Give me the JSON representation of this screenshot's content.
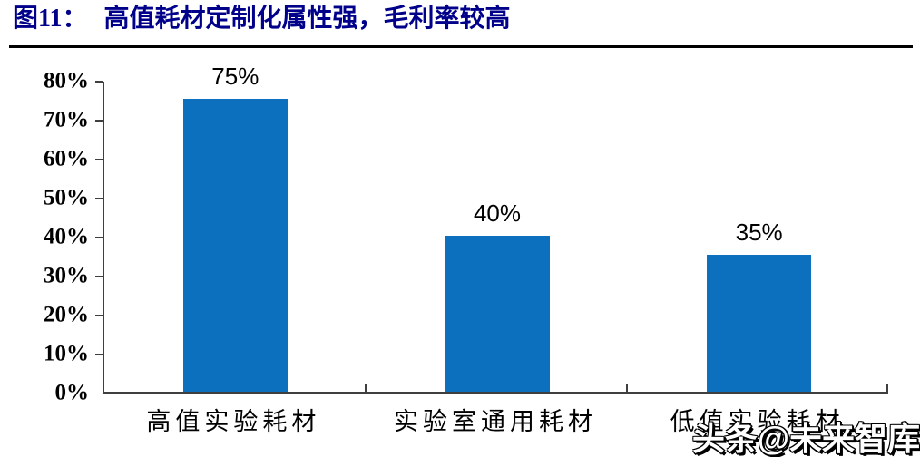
{
  "header": {
    "figure_no": "图11：",
    "title": "高值耗材定制化属性强，毛利率较高"
  },
  "chart_data": {
    "type": "bar",
    "title": "高值耗材定制化属性强，毛利率较高",
    "categories": [
      "高值实验耗材",
      "实验室通用耗材",
      "低值实验耗材"
    ],
    "values": [
      75,
      40,
      35
    ],
    "data_labels": [
      "75%",
      "40%",
      "35%"
    ],
    "y_tick_labels": [
      "80%",
      "70%",
      "60%",
      "50%",
      "40%",
      "30%",
      "20%",
      "10%",
      "0%"
    ],
    "xlabel": "",
    "ylabel": "",
    "ylim": [
      0,
      80
    ],
    "y_step": 10,
    "grid": false,
    "legend": "none",
    "bar_color": "#0C70BE",
    "axis_color": "#3F3F3F",
    "title_color": "#00008B"
  },
  "watermark": {
    "text": "头条@未来智库"
  }
}
